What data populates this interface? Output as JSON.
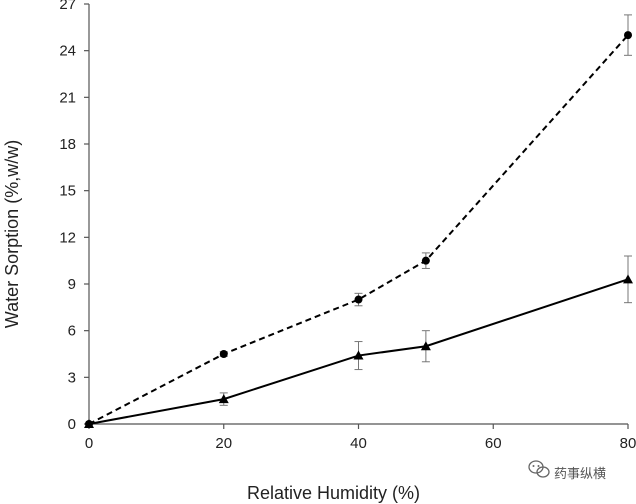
{
  "chart_data": {
    "type": "line",
    "title": "",
    "xlabel": "Relative Humidity (%)",
    "ylabel": "Water Sorption (%,w/w)",
    "xlim": [
      0,
      80
    ],
    "ylim": [
      0,
      27
    ],
    "x_ticks": [
      0,
      20,
      40,
      60,
      80
    ],
    "y_ticks": [
      0,
      3,
      6,
      9,
      12,
      15,
      18,
      21,
      24,
      27
    ],
    "grid": false,
    "legend": "none",
    "series": [
      {
        "marker": "circle",
        "line_style": "dashed",
        "color": "#000000",
        "points": [
          {
            "x": 0,
            "y": 0,
            "err": 0
          },
          {
            "x": 20,
            "y": 4.5,
            "err": 0.15
          },
          {
            "x": 40,
            "y": 8.0,
            "err": 0.4
          },
          {
            "x": 50,
            "y": 10.5,
            "err": 0.5
          },
          {
            "x": 80,
            "y": 25.0,
            "err": 1.3
          }
        ]
      },
      {
        "marker": "triangle",
        "line_style": "solid",
        "color": "#000000",
        "points": [
          {
            "x": 0,
            "y": 0,
            "err": 0
          },
          {
            "x": 20,
            "y": 1.6,
            "err": 0.4
          },
          {
            "x": 40,
            "y": 4.4,
            "err": 0.9
          },
          {
            "x": 50,
            "y": 5.0,
            "err": 1.0
          },
          {
            "x": 80,
            "y": 9.3,
            "err": 1.5
          }
        ]
      }
    ]
  },
  "watermark": {
    "icon": "wechat-icon",
    "text": "药事纵横"
  }
}
